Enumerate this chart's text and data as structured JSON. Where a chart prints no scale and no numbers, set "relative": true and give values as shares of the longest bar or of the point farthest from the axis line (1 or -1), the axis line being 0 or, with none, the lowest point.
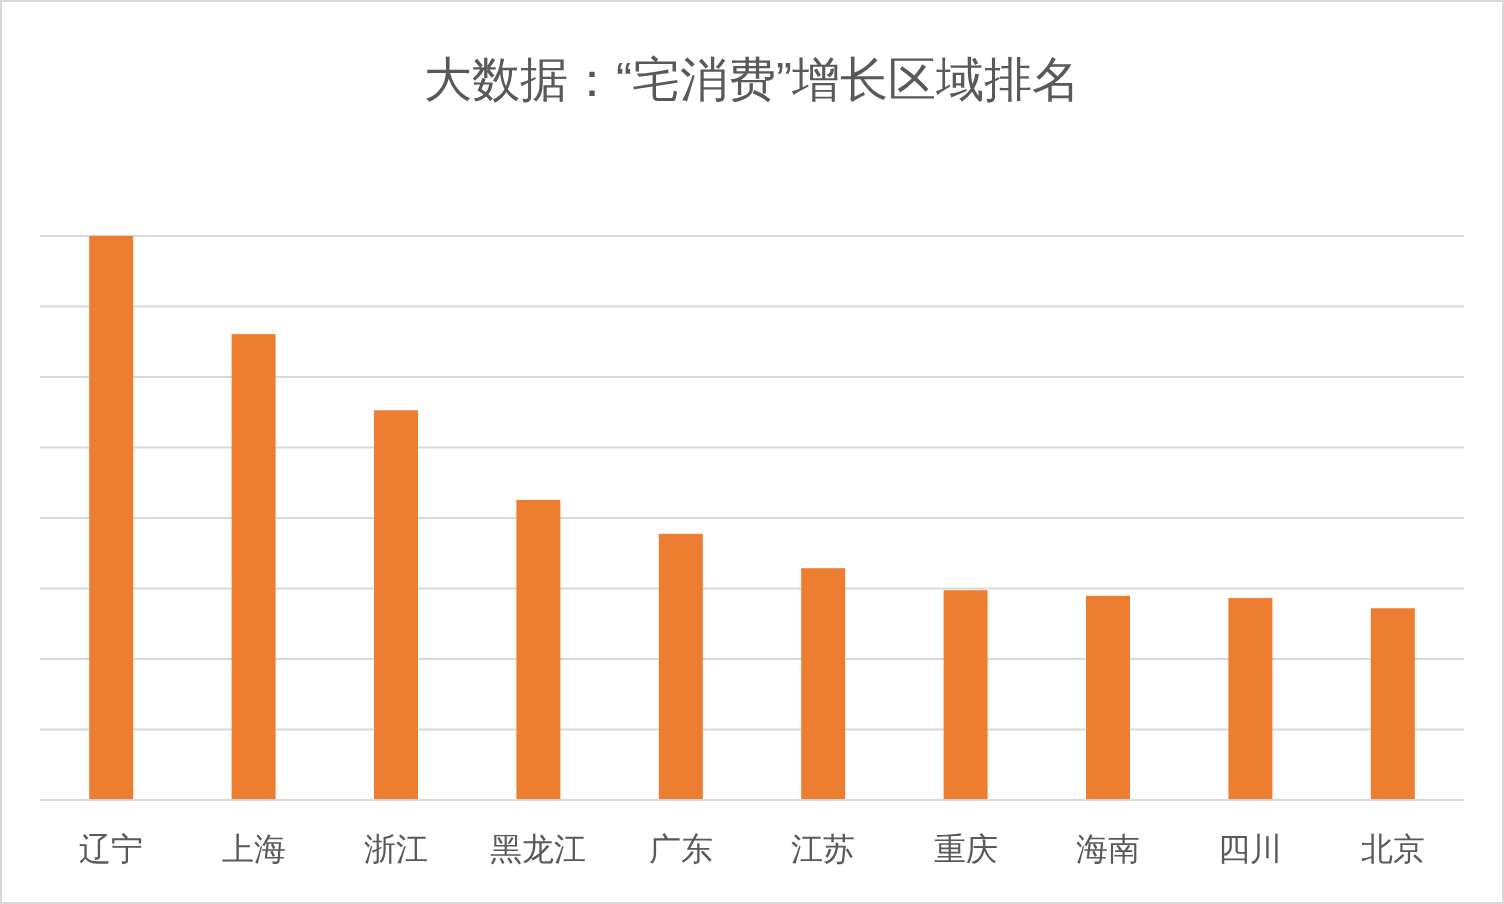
{
  "chart_data": {
    "type": "bar",
    "title": "大数据：“宅消费”增长区域排名",
    "relative": true,
    "grid": "y",
    "categories": [
      "辽宁",
      "上海",
      "浙江",
      "黑龙江",
      "广东",
      "江苏",
      "重庆",
      "海南",
      "四川",
      "北京"
    ],
    "series": [
      {
        "color": "#ed7d31",
        "values": [
          1,
          0.826,
          0.691,
          0.532,
          0.472,
          0.411,
          0.372,
          0.362,
          0.358,
          0.34
        ]
      }
    ]
  }
}
